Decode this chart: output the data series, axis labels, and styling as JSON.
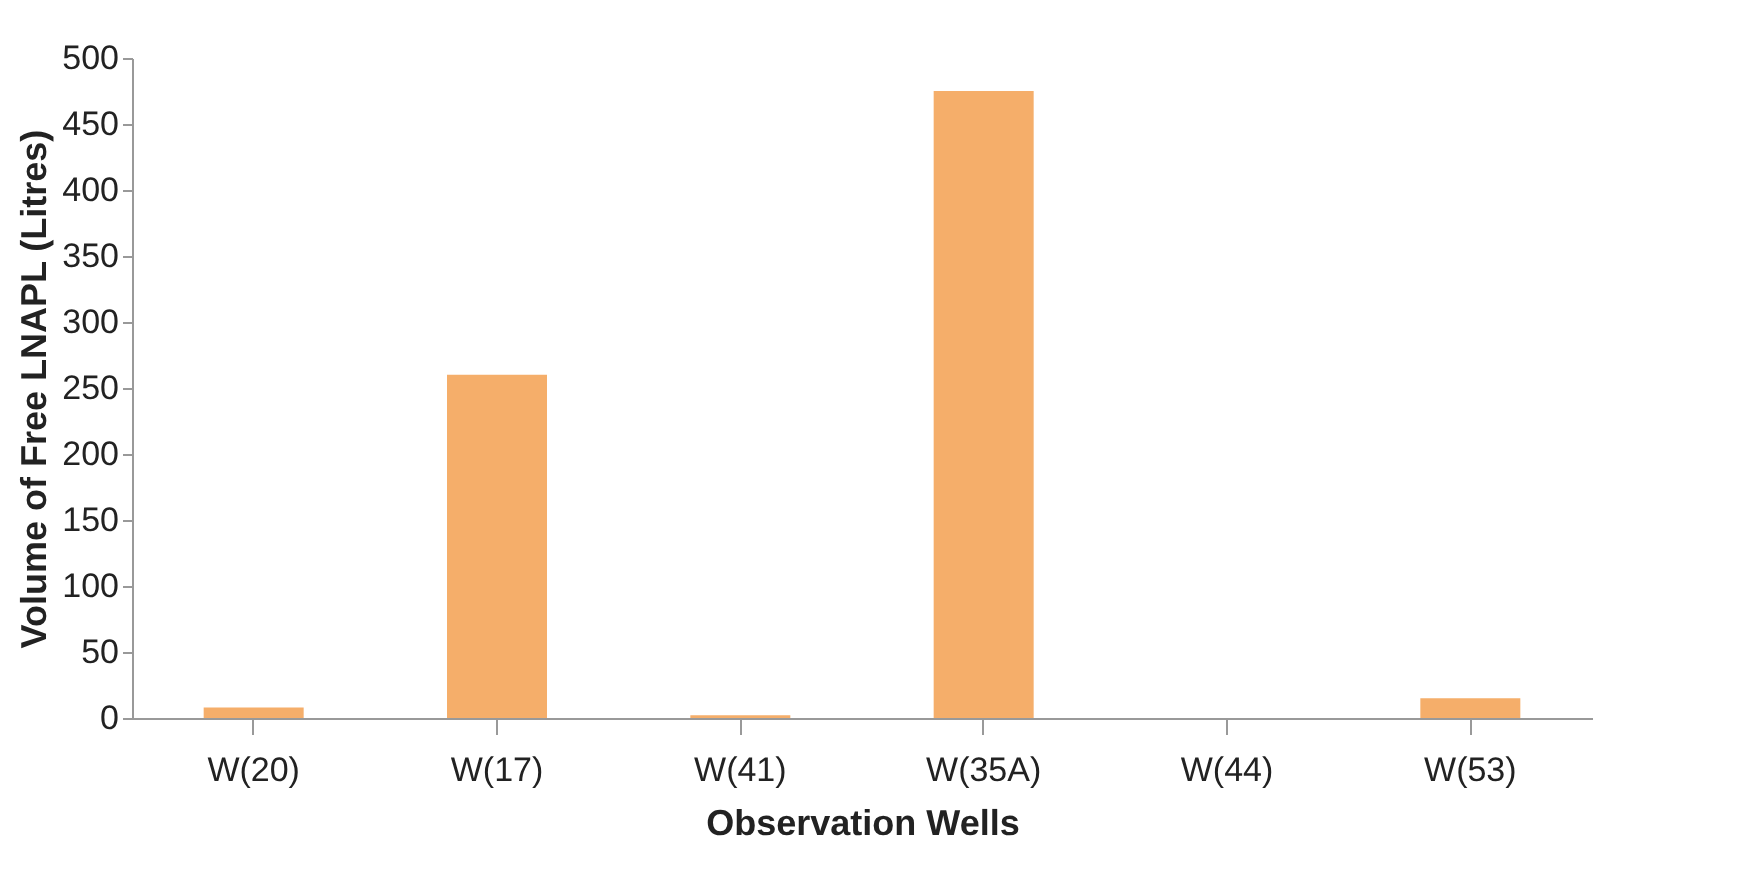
{
  "chart_data": {
    "type": "bar",
    "xlabel": "Observation Wells",
    "ylabel": "Volume of Free LNAPL (Litres)",
    "categories": [
      "W(20)",
      "W(17)",
      "W(41)",
      "W(35A)",
      "W(44)",
      "W(53)"
    ],
    "values": [
      8,
      260,
      2,
      475,
      0,
      15
    ],
    "color": "#f5ae6a",
    "ylim": [
      0,
      500
    ],
    "yticks": [
      0,
      50,
      100,
      150,
      200,
      250,
      300,
      350,
      400,
      450,
      500
    ],
    "grid": false
  }
}
